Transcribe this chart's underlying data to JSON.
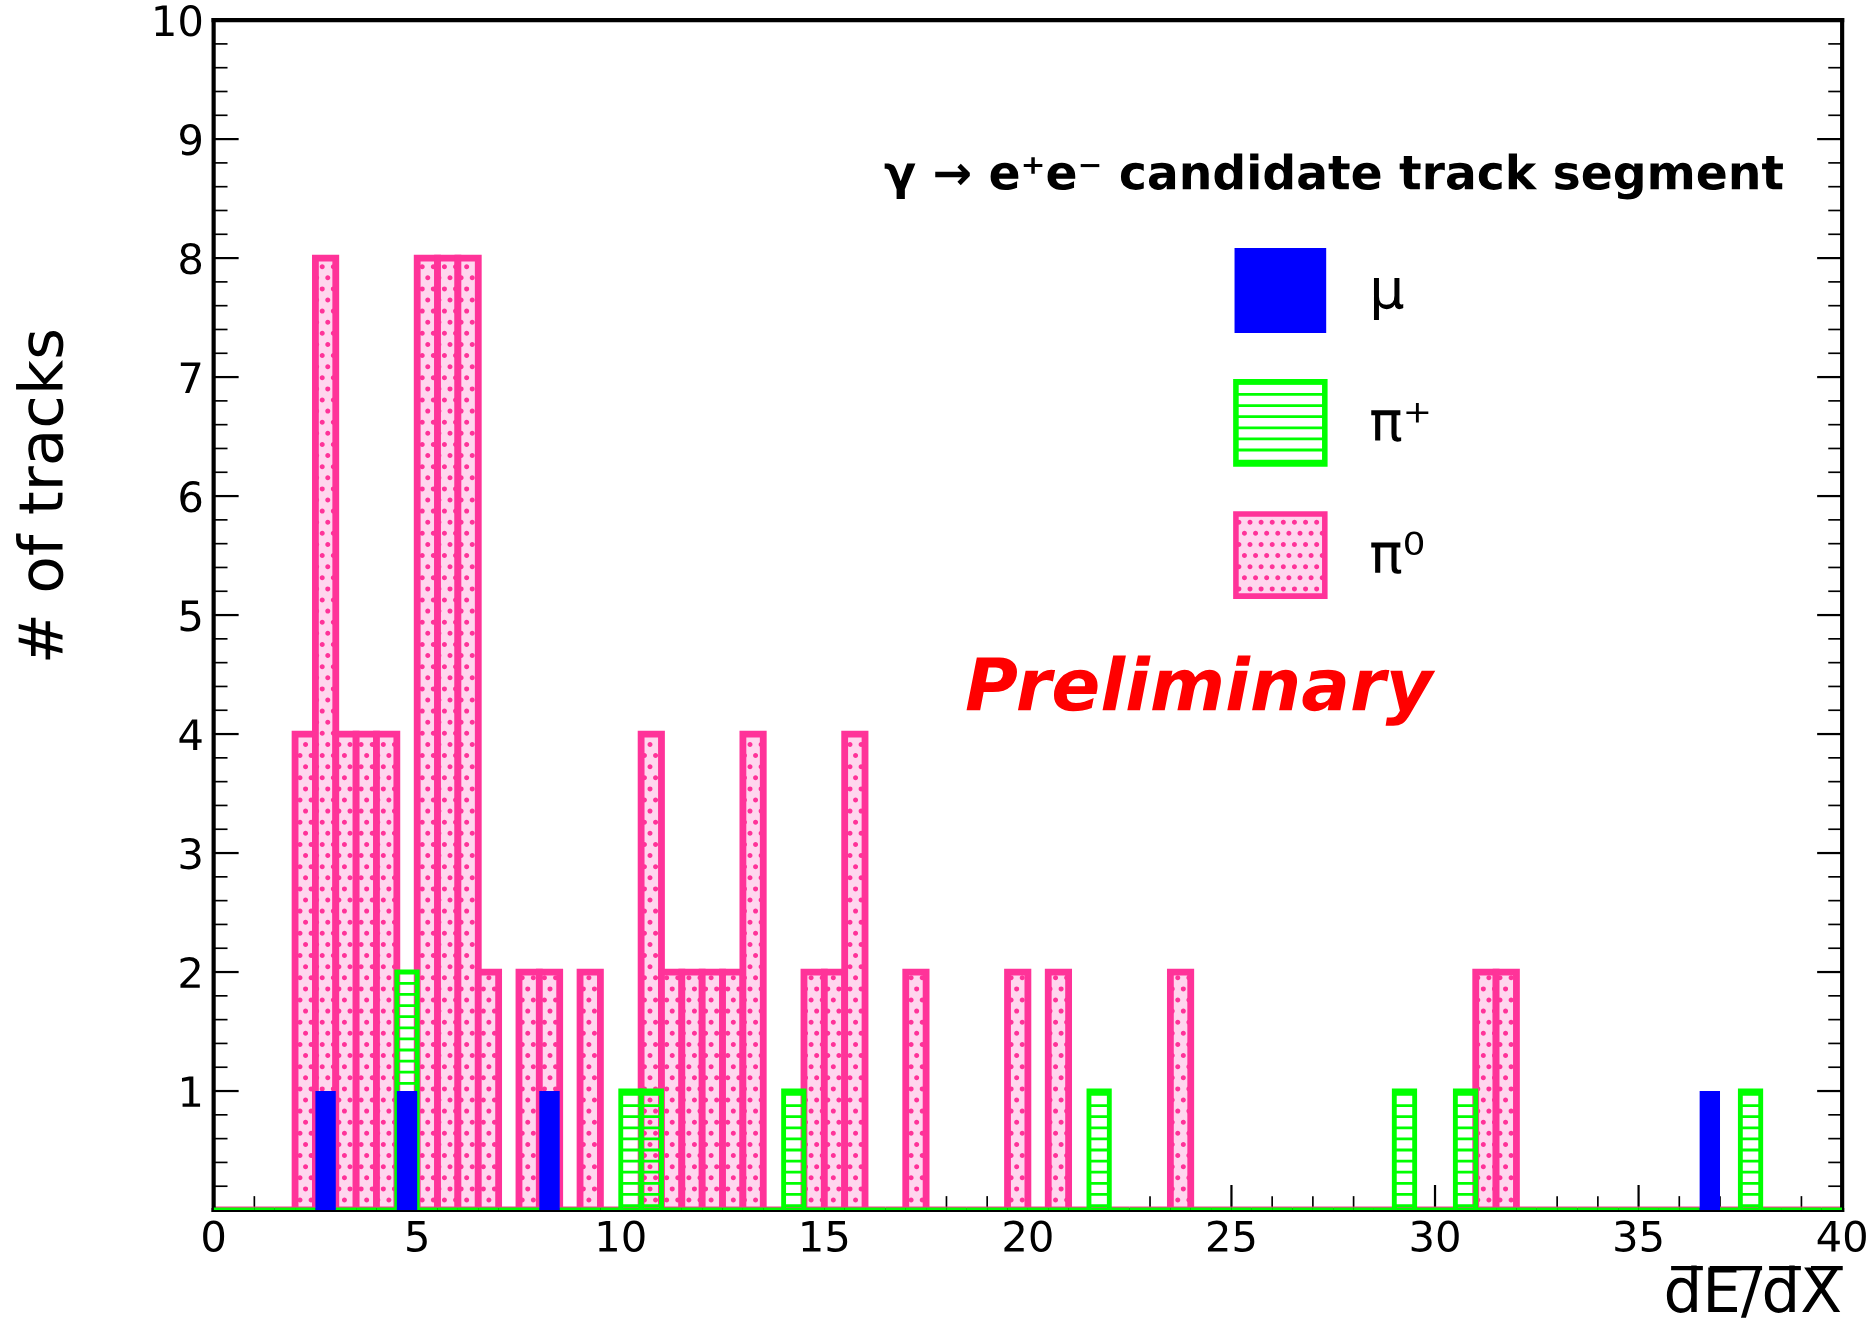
{
  "chart_data": {
    "type": "histogram",
    "xlabel": "d̅E̅/̅d̅X̅",
    "ylabel": "# of tracks",
    "legend_title": "γ → e⁺e⁻ candidate track segment",
    "annotations": [
      "Preliminary"
    ],
    "bins": [
      0,
      0.5,
      1,
      1.5,
      2,
      2.5,
      3,
      3.5,
      4,
      4.5,
      5,
      5.5,
      6,
      6.5,
      7,
      7.5,
      8,
      8.5,
      9,
      9.5,
      10,
      10.5,
      11,
      11.5,
      12,
      12.5,
      13,
      13.5,
      14,
      14.5,
      15,
      15.5,
      16,
      16.5,
      17,
      17.5,
      18,
      18.5,
      19,
      19.5,
      20,
      20.5,
      21,
      21.5,
      22,
      22.5,
      23,
      23.5,
      24,
      24.5,
      25,
      25.5,
      26,
      26.5,
      27,
      27.5,
      28,
      28.5,
      29,
      29.5,
      30,
      30.5,
      31,
      31.5,
      32,
      32.5,
      33,
      33.5,
      34,
      34.5,
      35,
      35.5,
      36,
      36.5,
      37,
      37.5,
      38,
      38.5,
      39,
      39.5,
      40
    ],
    "series": [
      {
        "name": "π⁰",
        "color": "#ff3399",
        "values": [
          0,
          0,
          0,
          0,
          4,
          8,
          4,
          4,
          4,
          0,
          8,
          8,
          8,
          2,
          0,
          2,
          2,
          0,
          2,
          0,
          0,
          4,
          2,
          2,
          2,
          2,
          4,
          0,
          0,
          2,
          2,
          4,
          0,
          0,
          2,
          0,
          0,
          0,
          0,
          2,
          0,
          2,
          0,
          0,
          0,
          0,
          0,
          2,
          0,
          0,
          0,
          0,
          0,
          0,
          0,
          0,
          0,
          0,
          0,
          0,
          0,
          0,
          2,
          2,
          0,
          0,
          0,
          0,
          0,
          0,
          0,
          0,
          0,
          0,
          0,
          0,
          0,
          0,
          0,
          0
        ]
      },
      {
        "name": "π⁺",
        "color": "#00ff00",
        "values": [
          0,
          0,
          0,
          0,
          0,
          0,
          0,
          0,
          0,
          2,
          0,
          0,
          0,
          0,
          0,
          0,
          0,
          0,
          0,
          0,
          1,
          1,
          0,
          0,
          0,
          0,
          0,
          0,
          1,
          0,
          0,
          0,
          0,
          0,
          0,
          0,
          0,
          0,
          0,
          0,
          0,
          0,
          0,
          1,
          0,
          0,
          0,
          0,
          0,
          0,
          0,
          0,
          0,
          0,
          0,
          0,
          0,
          0,
          1,
          0,
          0,
          1,
          0,
          0,
          0,
          0,
          0,
          0,
          0,
          0,
          0,
          0,
          0,
          0,
          0,
          1,
          0,
          0,
          0,
          0
        ]
      },
      {
        "name": "μ",
        "color": "#0000ff",
        "values": [
          0,
          0,
          0,
          0,
          0,
          1,
          0,
          0,
          0,
          1,
          0,
          0,
          0,
          0,
          0,
          0,
          1,
          0,
          0,
          0,
          0,
          0,
          0,
          0,
          0,
          0,
          0,
          0,
          0,
          0,
          0,
          0,
          0,
          0,
          0,
          0,
          0,
          0,
          0,
          0,
          0,
          0,
          0,
          0,
          0,
          0,
          0,
          0,
          0,
          0,
          0,
          0,
          0,
          0,
          0,
          0,
          0,
          0,
          0,
          0,
          0,
          0,
          0,
          0,
          0,
          0,
          0,
          0,
          0,
          0,
          0,
          0,
          0,
          1,
          0,
          0,
          0,
          0,
          0,
          0
        ]
      }
    ],
    "xlim": [
      0,
      40
    ],
    "xticks": [
      0,
      5,
      10,
      15,
      20,
      25,
      30,
      35,
      40
    ],
    "ylim": [
      0,
      10
    ],
    "yticks": [
      1,
      2,
      3,
      4,
      5,
      6,
      7,
      8,
      9,
      10
    ],
    "grid": false,
    "legend": "top right"
  }
}
